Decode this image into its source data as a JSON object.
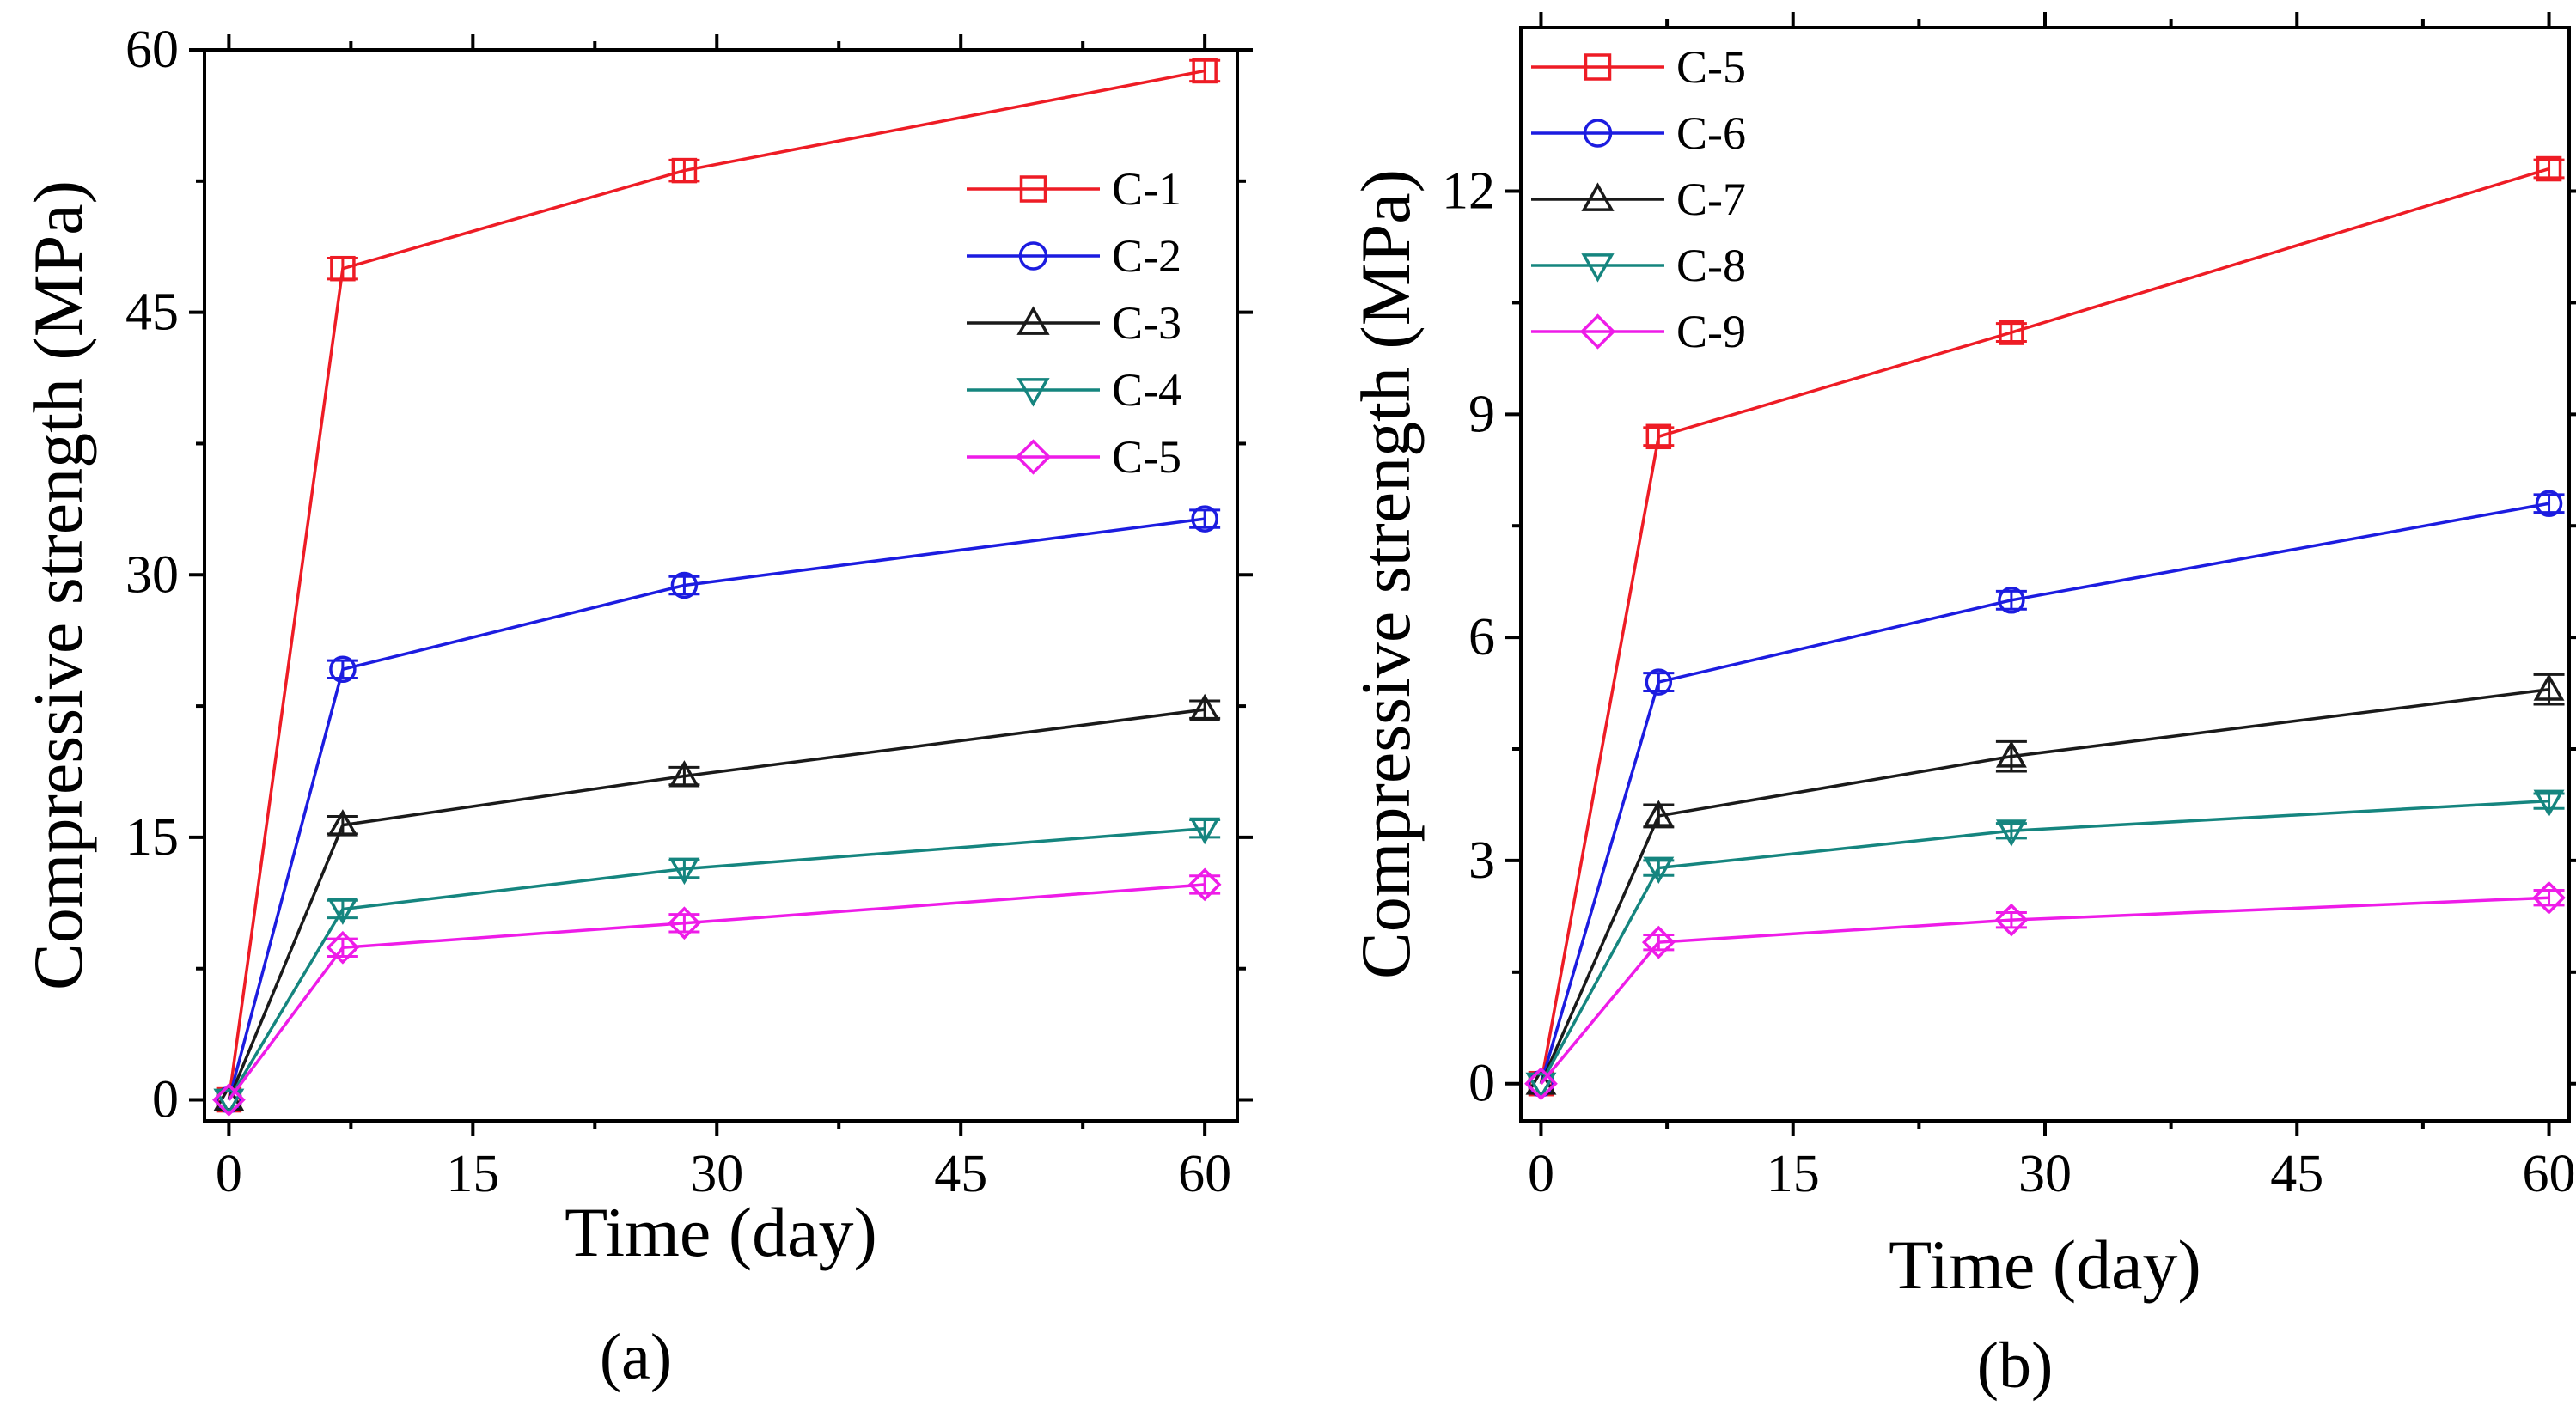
{
  "chart_data": [
    {
      "type": "line",
      "panel_label": "(a)",
      "xlabel": "Time (day)",
      "ylabel": "Compressive strength (MPa)",
      "xlim": [
        -1.5,
        62
      ],
      "ylim": [
        -1.2,
        60
      ],
      "xticks": [
        0,
        15,
        30,
        45,
        60
      ],
      "yticks": [
        0,
        15,
        30,
        45,
        60
      ],
      "grid": false,
      "legend_position": "right",
      "x": [
        0,
        7,
        28,
        60
      ],
      "series": [
        {
          "name": "C-1",
          "color": "#ee1c25",
          "marker": "square",
          "values": [
            0,
            47.5,
            53.1,
            58.8
          ],
          "errors": [
            0,
            0.6,
            0.6,
            0.6
          ]
        },
        {
          "name": "C-2",
          "color": "#1c1ce0",
          "marker": "circle",
          "values": [
            0,
            24.6,
            29.4,
            33.2
          ],
          "errors": [
            0,
            0.5,
            0.5,
            0.5
          ]
        },
        {
          "name": "C-3",
          "color": "#1a1a1a",
          "marker": "triangle-up",
          "values": [
            0,
            15.7,
            18.5,
            22.3
          ],
          "errors": [
            0,
            0.5,
            0.5,
            0.5
          ]
        },
        {
          "name": "C-4",
          "color": "#15857f",
          "marker": "triangle-down",
          "values": [
            0,
            10.9,
            13.2,
            15.5
          ],
          "errors": [
            0,
            0.5,
            0.5,
            0.5
          ]
        },
        {
          "name": "C-5",
          "color": "#ee1ce8",
          "marker": "diamond",
          "values": [
            0,
            8.7,
            10.1,
            12.3
          ],
          "errors": [
            0,
            0.5,
            0.5,
            0.5
          ]
        }
      ]
    },
    {
      "type": "line",
      "panel_label": "(b)",
      "xlabel": "Time (day)",
      "ylabel": "Compressive strength (MPa)",
      "xlim": [
        -1.2,
        61.2
      ],
      "ylim": [
        -0.5,
        14.2
      ],
      "xticks": [
        0,
        15,
        30,
        45,
        60
      ],
      "yticks": [
        0,
        3,
        6,
        9,
        12
      ],
      "grid": false,
      "legend_position": "top-left",
      "x": [
        0,
        7,
        28,
        60
      ],
      "series": [
        {
          "name": "C-5",
          "color": "#ee1c25",
          "marker": "square",
          "values": [
            0,
            8.7,
            10.1,
            12.3
          ],
          "errors": [
            0,
            0.12,
            0.12,
            0.12
          ]
        },
        {
          "name": "C-6",
          "color": "#1c1ce0",
          "marker": "circle",
          "values": [
            0,
            5.4,
            6.5,
            7.8
          ],
          "errors": [
            0,
            0.12,
            0.12,
            0.12
          ]
        },
        {
          "name": "C-7",
          "color": "#1a1a1a",
          "marker": "triangle-up",
          "values": [
            0,
            3.6,
            4.4,
            5.3
          ],
          "errors": [
            0,
            0.15,
            0.2,
            0.2
          ]
        },
        {
          "name": "C-8",
          "color": "#15857f",
          "marker": "triangle-down",
          "values": [
            0,
            2.9,
            3.4,
            3.8
          ],
          "errors": [
            0,
            0.1,
            0.1,
            0.1
          ]
        },
        {
          "name": "C-9",
          "color": "#ee1ce8",
          "marker": "diamond",
          "values": [
            0,
            1.9,
            2.2,
            2.5
          ],
          "errors": [
            0,
            0.1,
            0.1,
            0.1
          ]
        }
      ]
    }
  ]
}
